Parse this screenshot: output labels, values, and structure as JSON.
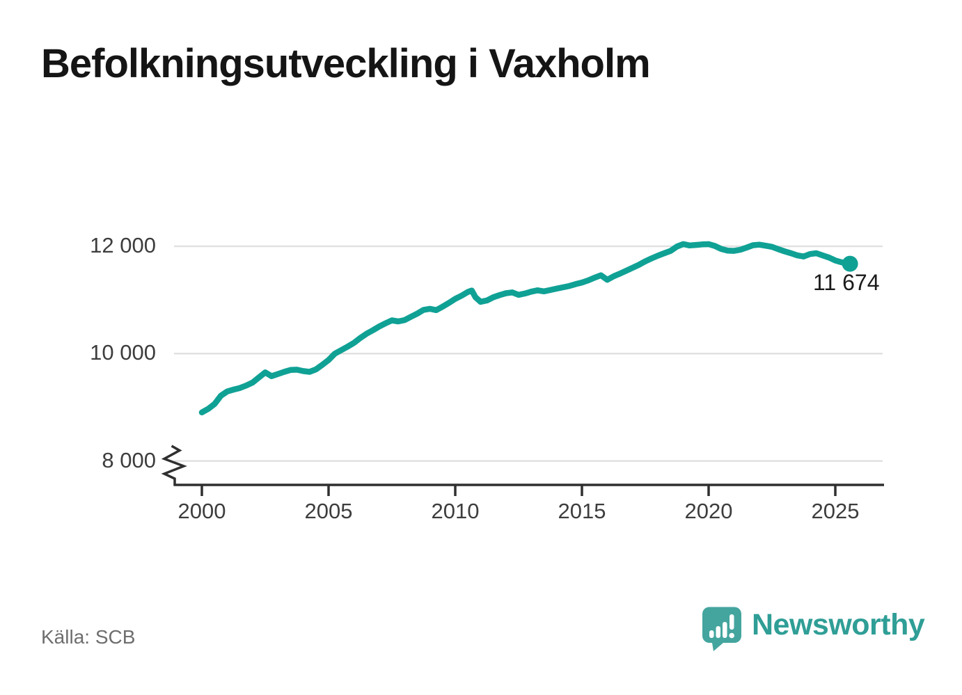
{
  "title": "Befolkningsutveckling i Vaxholm",
  "source": "Källa: SCB",
  "branding": {
    "logo_text": "Newsworthy",
    "logo_color": "#44A59E",
    "text_color": "#2F9E96"
  },
  "chart_data": {
    "type": "line",
    "title": "Befolkningsutveckling i Vaxholm",
    "xlabel": "",
    "ylabel": "",
    "legend": "none",
    "grid": "horizontal",
    "y_axis_break": true,
    "end_label": "11 674",
    "line_color": "#10A195",
    "grid_color": "#E1E1E1",
    "axis_color": "#2F2F2F",
    "x_ticks": [
      {
        "year": 2000,
        "label": "2000"
      },
      {
        "year": 2005,
        "label": "2005"
      },
      {
        "year": 2010,
        "label": "2010"
      },
      {
        "year": 2015,
        "label": "2015"
      },
      {
        "year": 2020,
        "label": "2020"
      },
      {
        "year": 2025,
        "label": "2025"
      }
    ],
    "y_ticks": [
      {
        "value": 12000,
        "label": "12 000"
      },
      {
        "value": 10000,
        "label": "10 000"
      },
      {
        "value": 8000,
        "label": "8 000"
      }
    ],
    "series": [
      {
        "name": "Befolkning i Vaxholm",
        "points": [
          [
            2000.0,
            8905
          ],
          [
            2000.25,
            8970
          ],
          [
            2000.5,
            9060
          ],
          [
            2000.75,
            9215
          ],
          [
            2001.0,
            9295
          ],
          [
            2001.25,
            9330
          ],
          [
            2001.5,
            9360
          ],
          [
            2001.75,
            9405
          ],
          [
            2002.0,
            9460
          ],
          [
            2002.25,
            9555
          ],
          [
            2002.5,
            9650
          ],
          [
            2002.75,
            9580
          ],
          [
            2003.0,
            9620
          ],
          [
            2003.25,
            9660
          ],
          [
            2003.5,
            9695
          ],
          [
            2003.75,
            9700
          ],
          [
            2004.0,
            9675
          ],
          [
            2004.25,
            9660
          ],
          [
            2004.5,
            9705
          ],
          [
            2004.75,
            9790
          ],
          [
            2005.0,
            9880
          ],
          [
            2005.25,
            10000
          ],
          [
            2005.5,
            10065
          ],
          [
            2005.75,
            10130
          ],
          [
            2006.0,
            10200
          ],
          [
            2006.25,
            10290
          ],
          [
            2006.5,
            10370
          ],
          [
            2006.75,
            10435
          ],
          [
            2007.0,
            10505
          ],
          [
            2007.25,
            10565
          ],
          [
            2007.5,
            10620
          ],
          [
            2007.75,
            10600
          ],
          [
            2008.0,
            10625
          ],
          [
            2008.25,
            10685
          ],
          [
            2008.5,
            10745
          ],
          [
            2008.75,
            10815
          ],
          [
            2009.0,
            10835
          ],
          [
            2009.25,
            10810
          ],
          [
            2009.5,
            10875
          ],
          [
            2009.75,
            10945
          ],
          [
            2010.0,
            11020
          ],
          [
            2010.25,
            11080
          ],
          [
            2010.5,
            11150
          ],
          [
            2010.65,
            11175
          ],
          [
            2010.8,
            11050
          ],
          [
            2011.0,
            10965
          ],
          [
            2011.25,
            10990
          ],
          [
            2011.5,
            11050
          ],
          [
            2011.75,
            11090
          ],
          [
            2012.0,
            11125
          ],
          [
            2012.25,
            11140
          ],
          [
            2012.5,
            11095
          ],
          [
            2012.75,
            11120
          ],
          [
            2013.0,
            11155
          ],
          [
            2013.25,
            11180
          ],
          [
            2013.5,
            11160
          ],
          [
            2013.75,
            11185
          ],
          [
            2014.0,
            11210
          ],
          [
            2014.25,
            11235
          ],
          [
            2014.5,
            11260
          ],
          [
            2014.75,
            11295
          ],
          [
            2015.0,
            11325
          ],
          [
            2015.25,
            11365
          ],
          [
            2015.5,
            11415
          ],
          [
            2015.75,
            11460
          ],
          [
            2016.0,
            11375
          ],
          [
            2016.25,
            11440
          ],
          [
            2016.5,
            11490
          ],
          [
            2016.75,
            11545
          ],
          [
            2017.0,
            11600
          ],
          [
            2017.25,
            11655
          ],
          [
            2017.5,
            11720
          ],
          [
            2017.75,
            11775
          ],
          [
            2018.0,
            11825
          ],
          [
            2018.25,
            11870
          ],
          [
            2018.5,
            11915
          ],
          [
            2018.75,
            11995
          ],
          [
            2019.0,
            12040
          ],
          [
            2019.25,
            12015
          ],
          [
            2019.5,
            12025
          ],
          [
            2019.75,
            12035
          ],
          [
            2020.0,
            12040
          ],
          [
            2020.25,
            12005
          ],
          [
            2020.5,
            11950
          ],
          [
            2020.75,
            11920
          ],
          [
            2021.0,
            11915
          ],
          [
            2021.25,
            11935
          ],
          [
            2021.5,
            11975
          ],
          [
            2021.75,
            12020
          ],
          [
            2022.0,
            12030
          ],
          [
            2022.25,
            12010
          ],
          [
            2022.5,
            11990
          ],
          [
            2022.75,
            11945
          ],
          [
            2023.0,
            11905
          ],
          [
            2023.25,
            11870
          ],
          [
            2023.5,
            11830
          ],
          [
            2023.75,
            11810
          ],
          [
            2024.0,
            11855
          ],
          [
            2024.25,
            11870
          ],
          [
            2024.5,
            11830
          ],
          [
            2024.75,
            11790
          ],
          [
            2025.0,
            11735
          ],
          [
            2025.25,
            11700
          ],
          [
            2025.58,
            11674
          ]
        ]
      }
    ]
  }
}
